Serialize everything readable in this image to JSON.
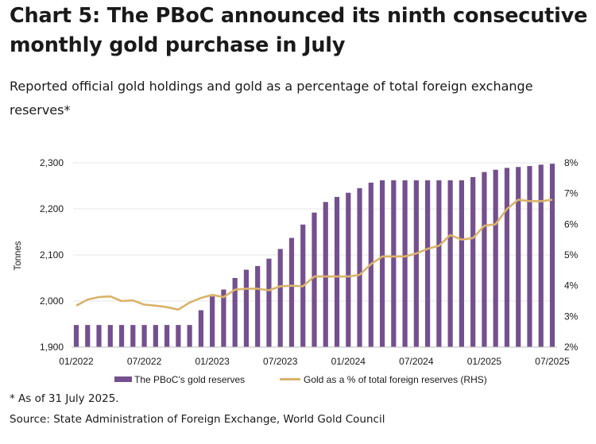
{
  "title": "Chart 5: The PBoC announced its ninth consecutive monthly gold purchase in July",
  "subtitle": "Reported official gold holdings and gold as a percentage of total foreign exchange reserves*",
  "footnote": "* As of 31 July 2025.",
  "source": "Source: State Administration of Foreign Exchange, World Gold Council",
  "colors": {
    "bar": "#74508f",
    "line": "#d9b36a",
    "grid": "#e6e6e6",
    "text": "#1a1a1a"
  },
  "chart_data": {
    "type": "bar",
    "ylabel": "Tonnes",
    "y2label": "",
    "ylim": [
      1900,
      2300
    ],
    "y2lim": [
      2,
      8
    ],
    "yticks": [
      1900,
      2000,
      2100,
      2200,
      2300
    ],
    "ytick_labels": [
      "1,900",
      "2,000",
      "2,100",
      "2,200",
      "2,300"
    ],
    "y2ticks": [
      2,
      3,
      4,
      5,
      6,
      7,
      8
    ],
    "y2tick_labels": [
      "2%",
      "3%",
      "4%",
      "5%",
      "6%",
      "7%",
      "8%"
    ],
    "x_tick_labels": [
      {
        "index": 0,
        "label": "01/2022"
      },
      {
        "index": 6,
        "label": "07/2022"
      },
      {
        "index": 12,
        "label": "01/2023"
      },
      {
        "index": 18,
        "label": "07/2023"
      },
      {
        "index": 24,
        "label": "01/2024"
      },
      {
        "index": 30,
        "label": "07/2024"
      },
      {
        "index": 36,
        "label": "01/2025"
      },
      {
        "index": 42,
        "label": "07/2025"
      }
    ],
    "grid": true,
    "legend_position": "bottom",
    "categories": [
      "01/2022",
      "02/2022",
      "03/2022",
      "04/2022",
      "05/2022",
      "06/2022",
      "07/2022",
      "08/2022",
      "09/2022",
      "10/2022",
      "11/2022",
      "12/2022",
      "01/2023",
      "02/2023",
      "03/2023",
      "04/2023",
      "05/2023",
      "06/2023",
      "07/2023",
      "08/2023",
      "09/2023",
      "10/2023",
      "11/2023",
      "12/2023",
      "01/2024",
      "02/2024",
      "03/2024",
      "04/2024",
      "05/2024",
      "06/2024",
      "07/2024",
      "08/2024",
      "09/2024",
      "10/2024",
      "11/2024",
      "12/2024",
      "01/2025",
      "02/2025",
      "03/2025",
      "04/2025",
      "05/2025",
      "06/2025",
      "07/2025"
    ],
    "series": [
      {
        "name": "The PBoC’s gold reserves",
        "type": "bar",
        "axis": "left",
        "values": [
          1948,
          1948,
          1948,
          1948,
          1948,
          1948,
          1948,
          1948,
          1948,
          1948,
          1948,
          1980,
          2010,
          2025,
          2050,
          2068,
          2076,
          2092,
          2113,
          2137,
          2166,
          2192,
          2215,
          2226,
          2235,
          2245,
          2257,
          2262,
          2262,
          2262,
          2262,
          2262,
          2262,
          2262,
          2262,
          2269,
          2280,
          2285,
          2289,
          2291,
          2293,
          2296,
          2298
        ]
      },
      {
        "name": "Gold as a % of total foreign reserves (RHS)",
        "type": "line",
        "axis": "right",
        "values": [
          3.35,
          3.55,
          3.63,
          3.65,
          3.5,
          3.52,
          3.38,
          3.35,
          3.3,
          3.22,
          3.45,
          3.6,
          3.7,
          3.63,
          3.87,
          3.9,
          3.9,
          3.85,
          3.98,
          4.0,
          3.98,
          4.3,
          4.3,
          4.3,
          4.3,
          4.35,
          4.7,
          4.95,
          4.95,
          4.95,
          5.05,
          5.2,
          5.3,
          5.65,
          5.5,
          5.55,
          5.95,
          6.0,
          6.5,
          6.8,
          6.75,
          6.75,
          6.8
        ]
      }
    ]
  }
}
